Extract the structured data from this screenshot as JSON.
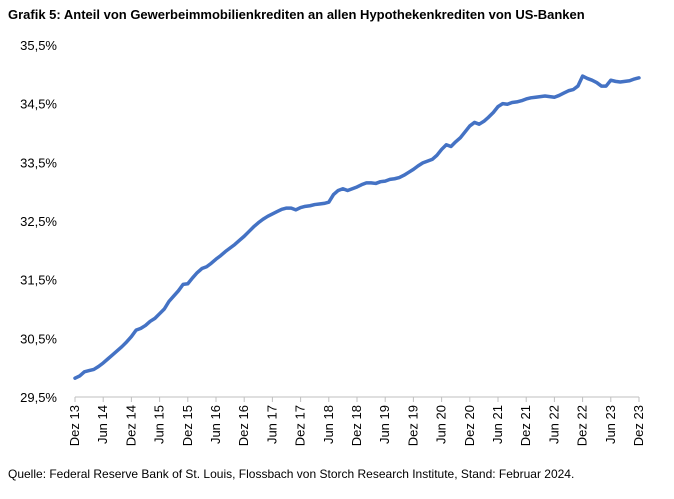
{
  "title": "Grafik 5: Anteil von Gewerbeimmobilienkrediten an allen Hypothekenkrediten von US-Banken",
  "source": "Quelle: Federal Reserve Bank of St. Louis, Flossbach von Storch Research Institute, Stand: Februar 2024.",
  "chart_data": {
    "type": "line",
    "title": "Grafik 5: Anteil von Gewerbeimmobilienkrediten an allen Hypothekenkrediten von US-Banken",
    "xlabel": "",
    "ylabel": "",
    "ylim": [
      29.5,
      35.5
    ],
    "y_ticks": [
      "29,5%",
      "30,5%",
      "31,5%",
      "32,5%",
      "33,5%",
      "34,5%",
      "35,5%"
    ],
    "y_tick_values": [
      29.5,
      30.5,
      31.5,
      32.5,
      33.5,
      34.5,
      35.5
    ],
    "x_ticks": [
      "Dez 13",
      "Jun 14",
      "Dez 14",
      "Jun 15",
      "Dez 15",
      "Jun 16",
      "Dez 16",
      "Jun 17",
      "Dez 17",
      "Jun 18",
      "Dez 18",
      "Jun 19",
      "Dez 19",
      "Jun 20",
      "Dez 20",
      "Jun 21",
      "Dez 21",
      "Jun 22",
      "Dez 22",
      "Jun 23",
      "Dez 23"
    ],
    "grid": false,
    "legend": "none",
    "color": "#4472c4",
    "series": [
      {
        "x": [
          "2013-12",
          "2014-01",
          "2014-02",
          "2014-03",
          "2014-04",
          "2014-05",
          "2014-06",
          "2014-07",
          "2014-08",
          "2014-09",
          "2014-10",
          "2014-11",
          "2014-12",
          "2015-01",
          "2015-02",
          "2015-03",
          "2015-04",
          "2015-05",
          "2015-06",
          "2015-07",
          "2015-08",
          "2015-09",
          "2015-10",
          "2015-11",
          "2015-12",
          "2016-01",
          "2016-02",
          "2016-03",
          "2016-04",
          "2016-05",
          "2016-06",
          "2016-07",
          "2016-08",
          "2016-09",
          "2016-10",
          "2016-11",
          "2016-12",
          "2017-01",
          "2017-02",
          "2017-03",
          "2017-04",
          "2017-05",
          "2017-06",
          "2017-07",
          "2017-08",
          "2017-09",
          "2017-10",
          "2017-11",
          "2017-12",
          "2018-01",
          "2018-02",
          "2018-03",
          "2018-04",
          "2018-05",
          "2018-06",
          "2018-07",
          "2018-08",
          "2018-09",
          "2018-10",
          "2018-11",
          "2018-12",
          "2019-01",
          "2019-02",
          "2019-03",
          "2019-04",
          "2019-05",
          "2019-06",
          "2019-07",
          "2019-08",
          "2019-09",
          "2019-10",
          "2019-11",
          "2019-12",
          "2020-01",
          "2020-02",
          "2020-03",
          "2020-04",
          "2020-05",
          "2020-06",
          "2020-07",
          "2020-08",
          "2020-09",
          "2020-10",
          "2020-11",
          "2020-12",
          "2021-01",
          "2021-02",
          "2021-03",
          "2021-04",
          "2021-05",
          "2021-06",
          "2021-07",
          "2021-08",
          "2021-09",
          "2021-10",
          "2021-11",
          "2021-12",
          "2022-01",
          "2022-02",
          "2022-03",
          "2022-04",
          "2022-05",
          "2022-06",
          "2022-07",
          "2022-08",
          "2022-09",
          "2022-10",
          "2022-11",
          "2022-12",
          "2023-01",
          "2023-02",
          "2023-03",
          "2023-04",
          "2023-05",
          "2023-06",
          "2023-07",
          "2023-08",
          "2023-09",
          "2023-10",
          "2023-11",
          "2023-12"
        ],
        "values": [
          29.82,
          29.86,
          29.93,
          29.95,
          29.97,
          30.02,
          30.08,
          30.15,
          30.22,
          30.29,
          30.36,
          30.44,
          30.53,
          30.64,
          30.67,
          30.72,
          30.79,
          30.84,
          30.92,
          31.0,
          31.13,
          31.22,
          31.31,
          31.42,
          31.43,
          31.53,
          31.62,
          31.69,
          31.72,
          31.78,
          31.85,
          31.91,
          31.98,
          32.04,
          32.1,
          32.17,
          32.24,
          32.32,
          32.4,
          32.47,
          32.53,
          32.58,
          32.62,
          32.66,
          32.7,
          32.72,
          32.72,
          32.69,
          32.73,
          32.75,
          32.76,
          32.78,
          32.79,
          32.8,
          32.82,
          32.95,
          33.02,
          33.05,
          33.02,
          33.05,
          33.08,
          33.12,
          33.15,
          33.15,
          33.14,
          33.17,
          33.18,
          33.21,
          33.22,
          33.24,
          33.28,
          33.33,
          33.38,
          33.44,
          33.49,
          33.52,
          33.55,
          33.62,
          33.72,
          33.8,
          33.77,
          33.85,
          33.92,
          34.02,
          34.12,
          34.18,
          34.15,
          34.2,
          34.27,
          34.35,
          34.45,
          34.5,
          34.49,
          34.52,
          34.53,
          34.55,
          34.58,
          34.6,
          34.61,
          34.62,
          34.63,
          34.62,
          34.61,
          34.64,
          34.68,
          34.72,
          34.74,
          34.8,
          34.97,
          34.93,
          34.9,
          34.86,
          34.8,
          34.8,
          34.9,
          34.88,
          34.87,
          34.88,
          34.89,
          34.92,
          34.94
        ]
      }
    ]
  }
}
